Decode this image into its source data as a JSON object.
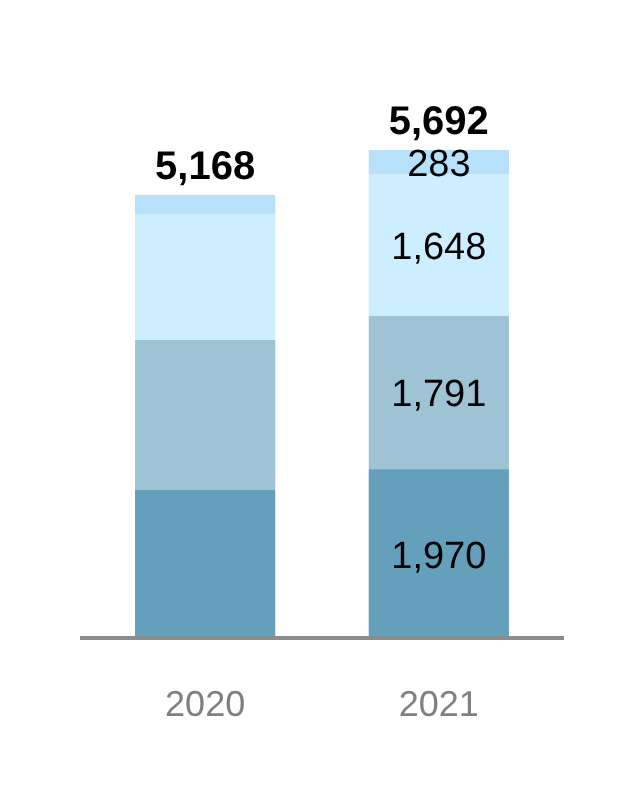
{
  "chart_data": {
    "type": "bar",
    "stacked": true,
    "categories": [
      "2020",
      "2021"
    ],
    "series": [
      {
        "color": "#64a0bb",
        "values": [
          1726,
          1970
        ],
        "value_labels": [
          null,
          "1,970"
        ]
      },
      {
        "color": "#9dc3d5",
        "values": [
          1750,
          1791
        ],
        "value_labels": [
          null,
          "1,791"
        ]
      },
      {
        "color": "#cdeefe",
        "values": [
          1470,
          1648
        ],
        "value_labels": [
          null,
          "1,648"
        ]
      },
      {
        "color": "#b7e0fa",
        "values": [
          222,
          283
        ],
        "value_labels": [
          null,
          "283"
        ]
      }
    ],
    "totals": [
      "5,168",
      "5,692"
    ]
  }
}
